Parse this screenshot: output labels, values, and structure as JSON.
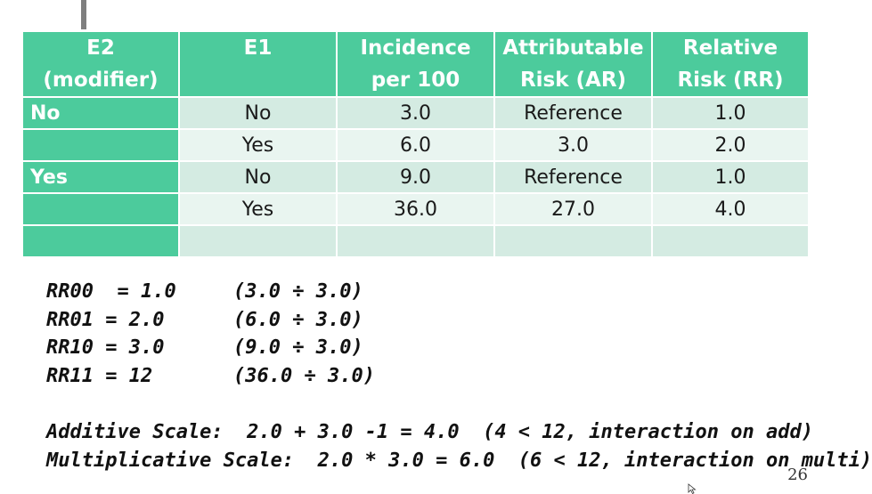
{
  "table": {
    "headers": [
      [
        "E2",
        "(modifier)"
      ],
      [
        "E1",
        ""
      ],
      [
        "Incidence",
        "per 100"
      ],
      [
        "Attributable",
        "Risk (AR)"
      ],
      [
        "Relative",
        "Risk (RR)"
      ]
    ],
    "rows": [
      {
        "modifier": "No",
        "e1": "No",
        "incidence": "3.0",
        "ar": "Reference",
        "rr": "1.0"
      },
      {
        "modifier": "",
        "e1": "Yes",
        "incidence": "6.0",
        "ar": "3.0",
        "rr": "2.0"
      },
      {
        "modifier": "Yes",
        "e1": "No",
        "incidence": "9.0",
        "ar": "Reference",
        "rr": "1.0"
      },
      {
        "modifier": "",
        "e1": "Yes",
        "incidence": "36.0",
        "ar": "27.0",
        "rr": "4.0"
      },
      {
        "modifier": "",
        "e1": "",
        "incidence": "",
        "ar": "",
        "rr": ""
      }
    ]
  },
  "formulas": [
    {
      "label": "RR00  = 1.0",
      "calc": "(3.0 ÷ 3.0)"
    },
    {
      "label": "RR01 = 2.0",
      "calc": "(6.0 ÷ 3.0)"
    },
    {
      "label": "RR10 = 3.0",
      "calc": "(9.0 ÷ 3.0)"
    },
    {
      "label": "RR11 = 12",
      "calc": "(36.0 ÷ 3.0)"
    }
  ],
  "scales": {
    "additive": "Additive Scale:  2.0 + 3.0 -1 = 4.0  (4 < 12, interaction on add)",
    "multiplicative": "Multiplicative Scale:  2.0 * 3.0 = 6.0  (6 < 12, interaction on multi)"
  },
  "page_number": "26",
  "colors": {
    "header_bg": "#4ccb9c",
    "row_dark": "#d4ebe2",
    "row_light": "#e9f5f0"
  }
}
